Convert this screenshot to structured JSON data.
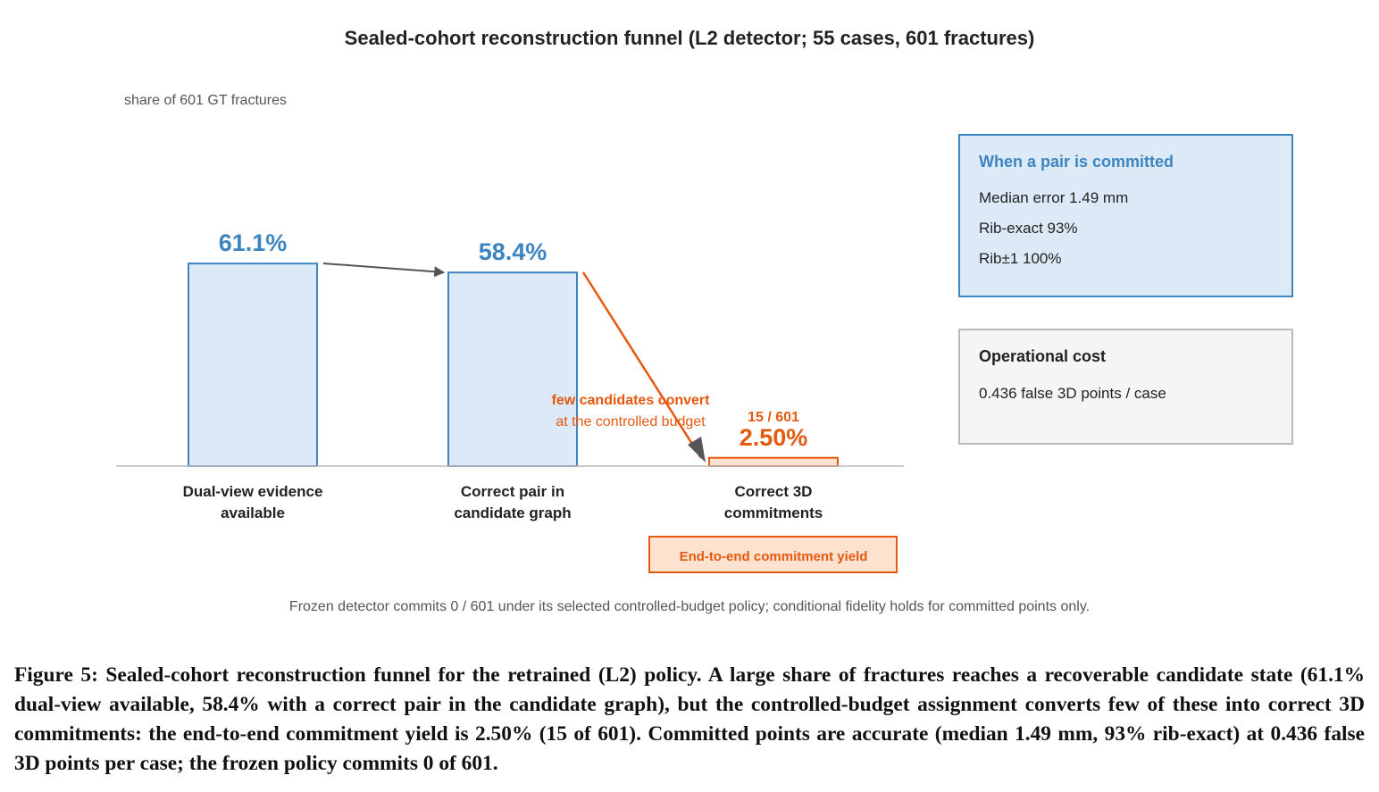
{
  "chart_data": {
    "type": "bar",
    "title": "Sealed-cohort reconstruction funnel (L2 detector; 55 cases, 601 fractures)",
    "ylabel": "share of 601 GT fractures",
    "categories": [
      [
        "Dual-view evidence",
        "available"
      ],
      [
        "Correct pair in",
        "candidate graph"
      ],
      [
        "Correct 3D",
        "commitments"
      ]
    ],
    "values": [
      61.1,
      58.4,
      2.5
    ],
    "value_labels": [
      "61.1%",
      "58.4%",
      "2.50%"
    ],
    "count_label": "15 / 601",
    "ylim": [
      0,
      100
    ],
    "grid": false,
    "colors": {
      "bar_fill": "#dce9f6",
      "bar_stroke": "#3d85c0",
      "highlight": "#e5590f",
      "highlight_fill": "#fde2d0",
      "arrow": "#555555"
    },
    "annotation": {
      "line1": "few candidates convert",
      "line2": "at the controlled budget"
    },
    "yield_label": "End-to-end commitment yield",
    "footnote": "Frozen detector commits 0 / 601 under its selected controlled-budget policy; conditional fidelity holds for committed points only."
  },
  "panels": {
    "committed": {
      "title": "When a pair is committed",
      "lines": [
        "Median error 1.49 mm",
        "Rib-exact 93%",
        "Rib±1 100%"
      ]
    },
    "cost": {
      "title": "Operational cost",
      "lines": [
        "0.436 false 3D points / case"
      ]
    }
  },
  "caption": "Figure 5: Sealed-cohort reconstruction funnel for the retrained (L2) policy. A large share of fractures reaches a recoverable candidate state (61.1% dual-view available, 58.4% with a correct pair in the candidate graph), but the controlled-budget assignment converts few of these into correct 3D commitments: the end-to-end commitment yield is 2.50% (15 of 601). Committed points are accurate (median 1.49 mm, 93% rib-exact) at 0.436 false 3D points per case; the frozen policy commits 0 of 601."
}
